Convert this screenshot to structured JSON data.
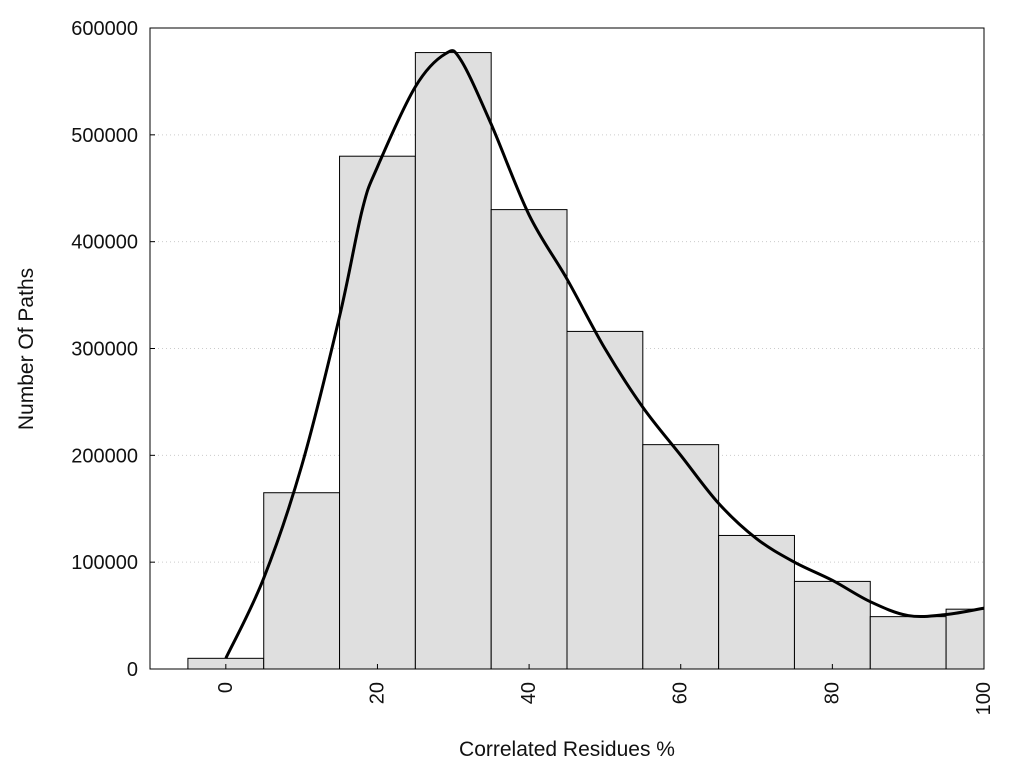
{
  "chart_data": {
    "type": "bar",
    "xlabel": "Correlated Residues %",
    "ylabel": "Number Of Paths",
    "xlim": [
      -10,
      100
    ],
    "ylim": [
      0,
      600000
    ],
    "grid": "horizontal dotted",
    "bin_width": 10,
    "bins": [
      {
        "center": 0,
        "value": 10000
      },
      {
        "center": 10,
        "value": 165000
      },
      {
        "center": 20,
        "value": 480000
      },
      {
        "center": 30,
        "value": 577000
      },
      {
        "center": 40,
        "value": 430000
      },
      {
        "center": 50,
        "value": 316000
      },
      {
        "center": 60,
        "value": 210000
      },
      {
        "center": 70,
        "value": 125000
      },
      {
        "center": 80,
        "value": 82000
      },
      {
        "center": 90,
        "value": 49000
      },
      {
        "center": 100,
        "value": 56000
      }
    ],
    "density_curve": {
      "x": [
        0,
        5,
        10,
        15,
        18,
        20,
        25,
        29,
        31,
        35,
        40,
        45,
        50,
        55,
        60,
        65,
        70,
        75,
        80,
        85,
        90,
        95,
        100
      ],
      "y": [
        10000,
        85000,
        190000,
        330000,
        430000,
        470000,
        545000,
        576000,
        570000,
        510000,
        425000,
        365000,
        300000,
        245000,
        200000,
        155000,
        122000,
        100000,
        83000,
        63000,
        50000,
        51000,
        57000
      ]
    },
    "xticks": [
      0,
      20,
      40,
      60,
      80,
      100
    ],
    "yticks": [
      0,
      100000,
      200000,
      300000,
      400000,
      500000,
      600000
    ],
    "colors": {
      "bar_fill": "#dfdfdf",
      "bar_stroke": "#000000",
      "curve": "#000000",
      "grid": "#cccccc"
    }
  }
}
